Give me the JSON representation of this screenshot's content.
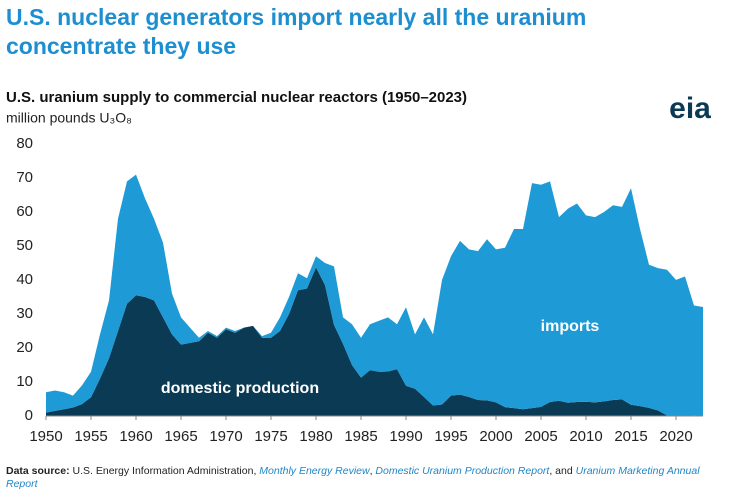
{
  "chart_data": {
    "type": "stacked-area",
    "title": "U.S. nuclear generators import nearly all the uranium",
    "title_line2": "concentrate they use",
    "subtitle": "U.S. uranium supply to commercial nuclear reactors (1950–2023)",
    "y_label": "million pounds U₃O₈",
    "logo": "eia",
    "source": [
      "Data source:",
      " U.S. Energy Information Administration, ",
      "Monthly Energy Review",
      ", ",
      "Domestic Uranium Production Report",
      ", and ",
      "Uranium Marketing Annual Report"
    ],
    "x": [
      1950,
      1951,
      1952,
      1953,
      1954,
      1955,
      1956,
      1957,
      1958,
      1959,
      1960,
      1961,
      1962,
      1963,
      1964,
      1965,
      1966,
      1967,
      1968,
      1969,
      1970,
      1971,
      1972,
      1973,
      1974,
      1975,
      1976,
      1977,
      1978,
      1979,
      1980,
      1981,
      1982,
      1983,
      1984,
      1985,
      1986,
      1987,
      1988,
      1989,
      1990,
      1991,
      1992,
      1993,
      1994,
      1995,
      1996,
      1997,
      1998,
      1999,
      2000,
      2001,
      2002,
      2003,
      2004,
      2005,
      2006,
      2007,
      2008,
      2009,
      2010,
      2011,
      2012,
      2013,
      2014,
      2015,
      2016,
      2017,
      2018,
      2019,
      2020,
      2021,
      2022,
      2023
    ],
    "series": [
      {
        "name": "domestic production",
        "color": "#0b3a55",
        "values": [
          1,
          1.5,
          2,
          2.5,
          3.5,
          5.5,
          11,
          17,
          25,
          33,
          35.5,
          35,
          34,
          29,
          24,
          21,
          21.5,
          22,
          24.5,
          23,
          25.5,
          24.5,
          26,
          26.5,
          23,
          23,
          25,
          30,
          37,
          37.5,
          43.7,
          38.5,
          26.8,
          21.2,
          15,
          11.3,
          13.5,
          13,
          13.1,
          13.8,
          8.9,
          8,
          5.6,
          3.1,
          3.4,
          6,
          6.3,
          5.6,
          4.7,
          4.6,
          4,
          2.6,
          2.3,
          2,
          2.3,
          2.7,
          4.1,
          4.5,
          3.9,
          4.1,
          4.2,
          4,
          4.3,
          4.7,
          4.9,
          3.3,
          2.9,
          2.4,
          1.6,
          0.2,
          0.03,
          0.02,
          0.19,
          0.05
        ]
      },
      {
        "name": "imports",
        "color": "#1e9ad6",
        "values": [
          6,
          6,
          5,
          3.5,
          5.5,
          7.5,
          13,
          17,
          33,
          36,
          35.5,
          29,
          24,
          22,
          12,
          8,
          4.5,
          1,
          0.5,
          0.5,
          0.5,
          0.5,
          0,
          0,
          0.5,
          1.5,
          4,
          5,
          5,
          3,
          3.3,
          6.5,
          17.2,
          7.8,
          12,
          11.7,
          13.5,
          15,
          15.9,
          13.2,
          23.1,
          16,
          23.4,
          20.9,
          36.6,
          41,
          45.2,
          43.4,
          43.8,
          47.4,
          45,
          46.9,
          52.7,
          53,
          66.2,
          65.3,
          64.9,
          54,
          57.1,
          58.4,
          54.8,
          54.5,
          55.7,
          57.3,
          56.6,
          63.7,
          52.1,
          42.1,
          41.9,
          42.8,
          40,
          41,
          32.3,
          32
        ]
      }
    ],
    "xlim": [
      1950,
      2023
    ],
    "xticks": [
      1950,
      1955,
      1960,
      1965,
      1970,
      1975,
      1980,
      1985,
      1990,
      1995,
      2000,
      2005,
      2010,
      2015,
      2020
    ],
    "ylim": [
      0,
      80
    ],
    "yticks": [
      0,
      10,
      20,
      30,
      40,
      50,
      60,
      70,
      80
    ],
    "grid": false
  }
}
